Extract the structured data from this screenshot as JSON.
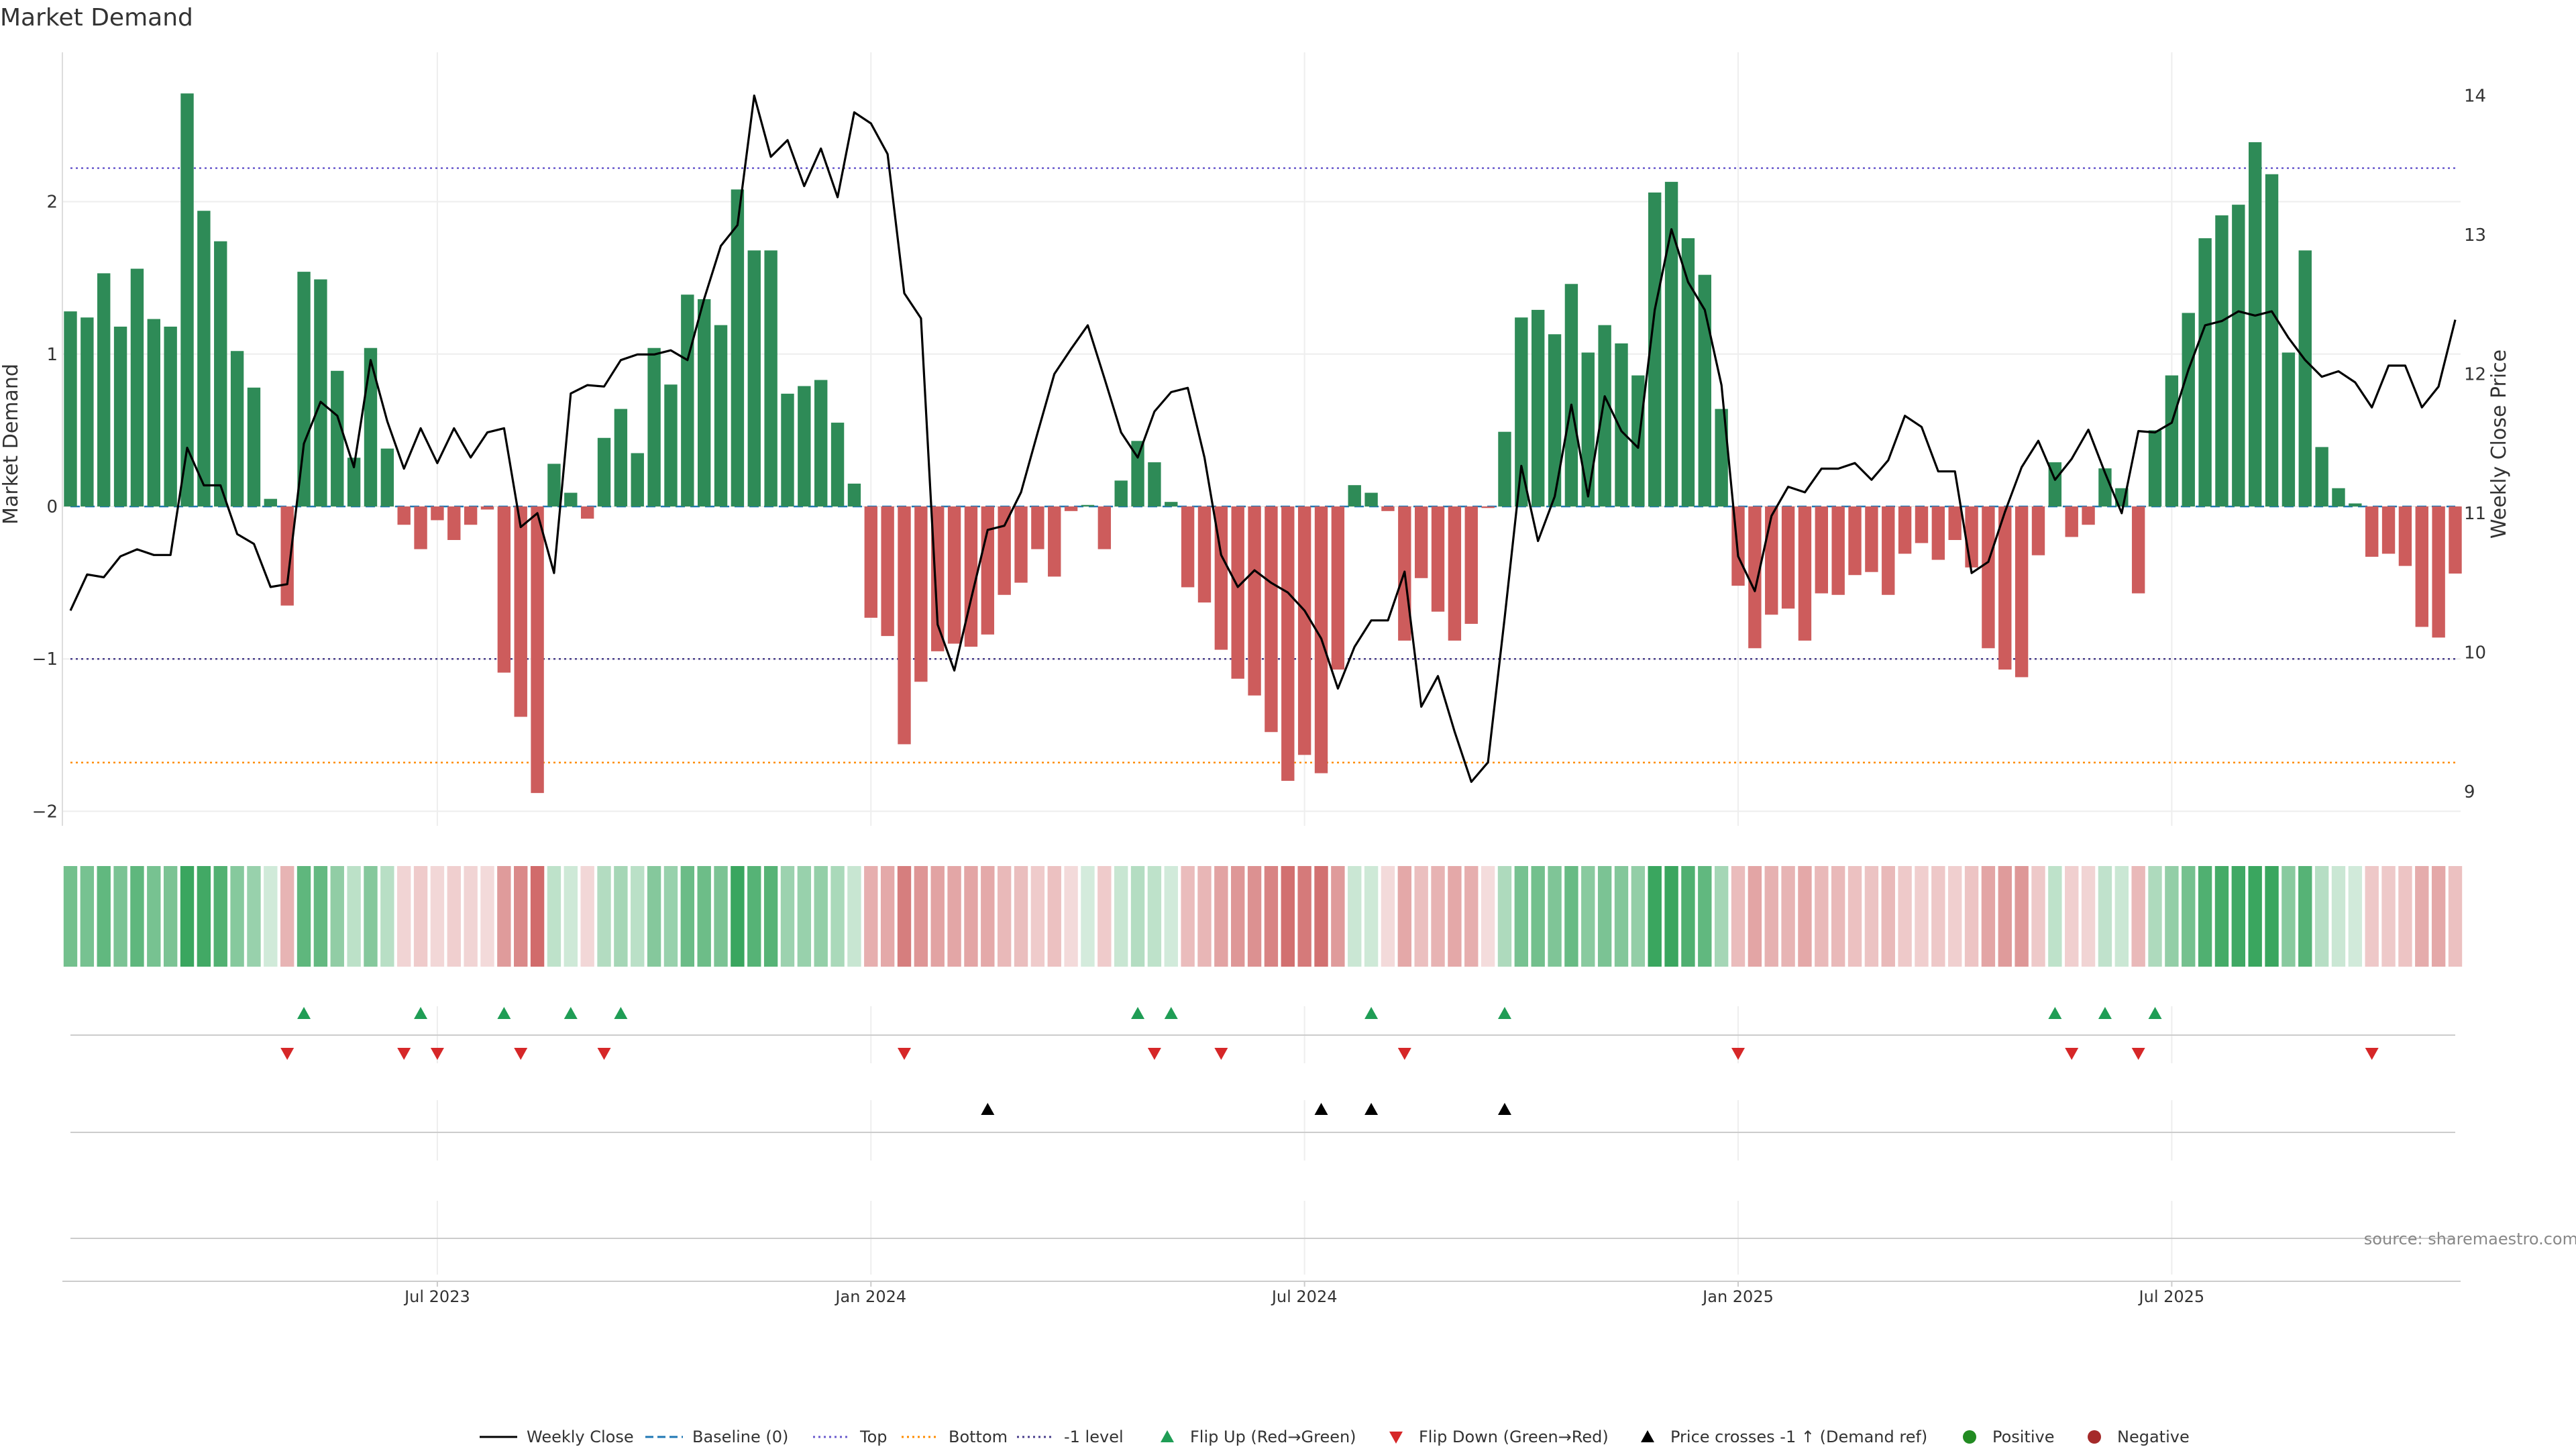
{
  "chart_data": {
    "type": "bar",
    "title": "Market Demand",
    "ylabel_left": "Market Demand",
    "ylabel_right": "Weekly Close Price",
    "ylim_left": [
      -2.0,
      3.0
    ],
    "ylim_right": [
      9.0,
      14.4
    ],
    "yticks_left": [
      -2,
      -1,
      0,
      1,
      2
    ],
    "ytick_labels_left": [
      "−2",
      "−1",
      "0",
      "1",
      "2"
    ],
    "yticks_right": [
      9,
      10,
      11,
      12,
      13,
      14
    ],
    "ytick_labels_right": [
      "9",
      "10",
      "11",
      "12",
      "13",
      "14"
    ],
    "x_start": "2023-01-08",
    "x_interval_days": 7,
    "x_tick_labels": [
      "Jul 2023",
      "Jan 2024",
      "Jul 2024",
      "Jan 2025",
      "Jul 2025"
    ],
    "x_tick_indices": [
      22,
      48,
      74,
      100,
      126
    ],
    "reference_lines": {
      "top": 2.22,
      "bottom": -1.68,
      "minus_one": -1.0,
      "baseline": 0.0
    },
    "demand": [
      1.28,
      1.24,
      1.53,
      1.18,
      1.56,
      1.23,
      1.18,
      2.71,
      1.94,
      1.74,
      1.02,
      0.78,
      0.05,
      -0.65,
      1.54,
      1.49,
      0.89,
      0.32,
      1.04,
      0.38,
      -0.12,
      -0.28,
      -0.09,
      -0.22,
      -0.12,
      -0.02,
      -1.09,
      -1.38,
      -1.88,
      0.28,
      0.09,
      -0.08,
      0.45,
      0.64,
      0.35,
      1.04,
      0.8,
      1.39,
      1.36,
      1.19,
      2.08,
      1.68,
      1.68,
      0.74,
      0.79,
      0.83,
      0.55,
      0.15,
      -0.73,
      -0.85,
      -1.56,
      -1.15,
      -0.95,
      -0.9,
      -0.92,
      -0.84,
      -0.58,
      -0.5,
      -0.28,
      -0.46,
      -0.03,
      0.01,
      -0.28,
      0.17,
      0.43,
      0.29,
      0.03,
      -0.53,
      -0.63,
      -0.94,
      -1.13,
      -1.24,
      -1.48,
      -1.8,
      -1.63,
      -1.75,
      -1.07,
      0.14,
      0.09,
      -0.03,
      -0.88,
      -0.47,
      -0.69,
      -0.88,
      -0.77,
      -0.01,
      0.49,
      1.24,
      1.29,
      1.13,
      1.46,
      1.01,
      1.19,
      1.07,
      0.86,
      2.06,
      2.13,
      1.76,
      1.52,
      0.64,
      -0.52,
      -0.93,
      -0.71,
      -0.67,
      -0.88,
      -0.57,
      -0.58,
      -0.45,
      -0.43,
      -0.58,
      -0.31,
      -0.24,
      -0.35,
      -0.22,
      -0.4,
      -0.93,
      -1.07,
      -1.12,
      -0.32,
      0.29,
      -0.2,
      -0.12,
      0.25,
      0.12,
      -0.57,
      0.5,
      0.86,
      1.27,
      1.76,
      1.91,
      1.98,
      2.39,
      2.18,
      1.01,
      1.68,
      0.39,
      0.12,
      0.02,
      -0.33,
      -0.31,
      -0.39,
      -0.79,
      -0.86,
      -0.44
    ],
    "weekly_close": [
      10.3,
      10.56,
      10.54,
      10.69,
      10.74,
      10.7,
      10.7,
      11.47,
      11.2,
      11.2,
      10.85,
      10.78,
      10.47,
      10.49,
      11.5,
      11.8,
      11.7,
      11.33,
      12.1,
      11.66,
      11.32,
      11.61,
      11.36,
      11.61,
      11.4,
      11.58,
      11.61,
      10.9,
      11.0,
      10.57,
      11.86,
      11.92,
      11.91,
      12.1,
      12.14,
      12.14,
      12.17,
      12.1,
      12.54,
      12.92,
      13.07,
      14.0,
      13.56,
      13.68,
      13.35,
      13.62,
      13.27,
      13.88,
      13.8,
      13.58,
      12.58,
      12.4,
      10.2,
      9.87,
      10.38,
      10.88,
      10.91,
      11.15,
      11.58,
      12.0,
      12.18,
      12.35,
      11.97,
      11.58,
      11.4,
      11.73,
      11.87,
      11.9,
      11.4,
      10.7,
      10.47,
      10.59,
      10.5,
      10.43,
      10.3,
      10.1,
      9.74,
      10.04,
      10.23,
      10.23,
      10.58,
      9.61,
      9.83,
      9.43,
      9.07,
      9.21,
      10.25,
      11.34,
      10.8,
      11.12,
      11.78,
      11.12,
      11.84,
      11.59,
      11.47,
      12.46,
      13.04,
      12.66,
      12.46,
      11.92,
      10.69,
      10.44,
      10.98,
      11.19,
      11.15,
      11.32,
      11.32,
      11.36,
      11.24,
      11.38,
      11.7,
      11.62,
      11.3,
      11.3,
      10.57,
      10.65,
      11.01,
      11.33,
      11.52,
      11.24,
      11.39,
      11.6,
      11.29,
      11.0,
      11.59,
      11.58,
      11.65,
      12.03,
      12.35,
      12.38,
      12.45,
      12.42,
      12.45,
      12.26,
      12.1,
      11.98,
      12.02,
      11.94,
      11.76,
      12.06,
      12.06,
      11.76,
      11.91,
      12.39
    ],
    "flip_up_indices": [
      14,
      21,
      26,
      30,
      33,
      64,
      66,
      78,
      86,
      119,
      122,
      125
    ],
    "flip_down_indices": [
      13,
      20,
      22,
      27,
      32,
      50,
      65,
      69,
      80,
      100,
      120,
      124,
      138
    ],
    "price_cross_indices": [
      55,
      75,
      78,
      86
    ],
    "legend": [
      "Weekly Close",
      "Baseline (0)",
      "Top",
      "Bottom",
      "-1 level",
      "Flip Up (Red→Green)",
      "Flip Down (Green→Red)",
      "Price crosses -1 ↑ (Demand ref)",
      "Positive",
      "Negative"
    ],
    "legend_placement": "bottom-center",
    "colors": {
      "positive": "#2e8b57",
      "negative": "#cd5c5c",
      "close_line": "#000000",
      "baseline": "#1f77b4",
      "top_line": "#6a5acd",
      "bottom_line": "#ff8c00",
      "minus_one_line": "#483d8b",
      "flip_up": "#1f9d55",
      "flip_down": "#d62728",
      "price_cross": "#000000",
      "legend_positive_dot": "#228b22",
      "legend_negative_dot": "#a52a2a"
    },
    "source_note": "source: sharemaestro.com"
  }
}
